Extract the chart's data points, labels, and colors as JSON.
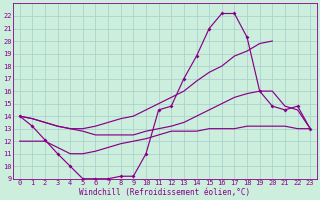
{
  "xlabel": "Windchill (Refroidissement éolien,°C)",
  "series": {
    "s1": {
      "x": [
        0,
        1,
        2,
        3,
        4,
        5,
        6,
        7,
        8,
        9,
        10,
        11,
        12,
        13,
        14,
        15,
        16,
        17,
        18,
        19,
        20,
        21,
        22,
        23
      ],
      "y": [
        14.0,
        13.2,
        12.1,
        11.0,
        10.0,
        9.0,
        9.0,
        9.0,
        9.2,
        9.2,
        11.0,
        14.5,
        14.8,
        17.0,
        18.8,
        21.0,
        22.2,
        22.2,
        20.3,
        16.0,
        14.8,
        14.5,
        14.8,
        13.0
      ],
      "marker": true
    },
    "s2": {
      "x": [
        0,
        1,
        2,
        3,
        4,
        5,
        6,
        7,
        8,
        9,
        10,
        11,
        12,
        13,
        14,
        15,
        16,
        17,
        18,
        19,
        20,
        21,
        22,
        23
      ],
      "y": [
        14.0,
        13.8,
        13.5,
        13.2,
        13.0,
        13.0,
        13.2,
        13.5,
        13.8,
        14.0,
        14.5,
        15.0,
        15.5,
        16.0,
        16.8,
        17.5,
        18.0,
        18.8,
        19.2,
        19.8,
        20.0,
        null,
        null,
        null
      ],
      "marker": false
    },
    "s3": {
      "x": [
        0,
        1,
        2,
        3,
        4,
        5,
        6,
        7,
        8,
        9,
        10,
        11,
        12,
        13,
        14,
        15,
        16,
        17,
        18,
        19,
        20,
        21,
        22,
        23
      ],
      "y": [
        14.0,
        13.8,
        13.5,
        13.2,
        13.0,
        12.8,
        12.5,
        12.5,
        12.5,
        12.5,
        12.8,
        13.0,
        13.2,
        13.5,
        14.0,
        14.5,
        15.0,
        15.5,
        15.8,
        16.0,
        16.0,
        14.8,
        14.5,
        13.0
      ],
      "marker": false
    },
    "s4": {
      "x": [
        0,
        1,
        2,
        3,
        4,
        5,
        6,
        7,
        8,
        9,
        10,
        11,
        12,
        13,
        14,
        15,
        16,
        17,
        18,
        19,
        20,
        21,
        22,
        23
      ],
      "y": [
        12.0,
        12.0,
        12.0,
        11.5,
        11.0,
        11.0,
        11.2,
        11.5,
        11.8,
        12.0,
        12.2,
        12.5,
        12.8,
        12.8,
        12.8,
        13.0,
        13.0,
        13.0,
        13.2,
        13.2,
        13.2,
        13.2,
        13.0,
        13.0
      ],
      "marker": false
    }
  },
  "ylim": [
    9,
    23
  ],
  "xlim_min": -0.5,
  "xlim_max": 23.5,
  "yticks": [
    9,
    10,
    11,
    12,
    13,
    14,
    15,
    16,
    17,
    18,
    19,
    20,
    21,
    22
  ],
  "xticks": [
    0,
    1,
    2,
    3,
    4,
    5,
    6,
    7,
    8,
    9,
    10,
    11,
    12,
    13,
    14,
    15,
    16,
    17,
    18,
    19,
    20,
    21,
    22,
    23
  ],
  "line_color": "#880088",
  "bg_color": "#cceedd",
  "grid_color": "#aacccc",
  "tick_fontsize": 5.0,
  "xlabel_fontsize": 5.5,
  "linewidth": 0.85,
  "markersize": 2.0
}
